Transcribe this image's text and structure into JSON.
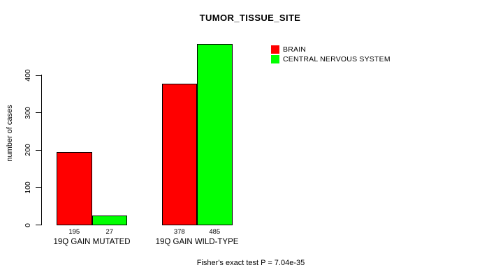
{
  "title": "TUMOR_TISSUE_SITE",
  "y_axis": {
    "label": "number of cases",
    "ticks": [
      "0",
      "100",
      "200",
      "300",
      "400"
    ]
  },
  "legend": {
    "items": [
      {
        "label": "BRAIN",
        "color": "#FF0000"
      },
      {
        "label": "CENTRAL NERVOUS SYSTEM",
        "color": "#00FF00"
      }
    ]
  },
  "footer": "Fisher's exact test P = 7.04e-35",
  "chart_data": {
    "type": "bar",
    "title": "TUMOR_TISSUE_SITE",
    "categories": [
      "19Q GAIN MUTATED",
      "19Q GAIN WILD-TYPE"
    ],
    "series": [
      {
        "name": "BRAIN",
        "color": "#FF0000",
        "values": [
          195,
          378
        ]
      },
      {
        "name": "CENTRAL NERVOUS SYSTEM",
        "color": "#00FF00",
        "values": [
          27,
          485
        ]
      }
    ],
    "bar_value_labels": [
      [
        195,
        27
      ],
      [
        378,
        485
      ]
    ],
    "xlabel": "",
    "ylabel": "number of cases",
    "ylim": [
      0,
      500
    ],
    "yticks": [
      0,
      100,
      200,
      300,
      400
    ],
    "grid": false,
    "bar_border_color": "#000000",
    "legend_position": "top-right",
    "annotation": "Fisher's exact test P = 7.04e-35"
  }
}
